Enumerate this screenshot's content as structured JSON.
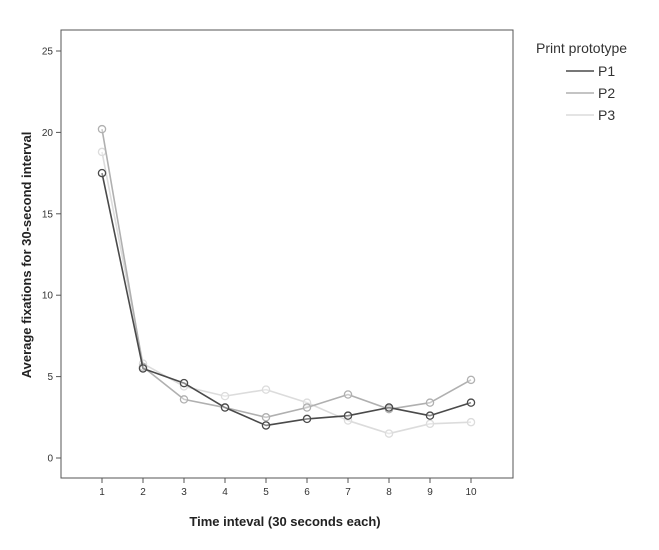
{
  "chart_data": {
    "type": "line",
    "xlabel": "Time inteval (30 seconds each)",
    "ylabel": "Average fixations for 30-second interval",
    "x": [
      1,
      2,
      3,
      4,
      5,
      6,
      7,
      8,
      9,
      10
    ],
    "xticks": [
      "1",
      "2",
      "3",
      "4",
      "5",
      "6",
      "7",
      "8",
      "9",
      "10"
    ],
    "ylim": [
      0,
      25
    ],
    "yticks": [
      "0",
      "5",
      "10",
      "15",
      "20",
      "25"
    ],
    "legend_title": "Print prototype",
    "legend_position": "top-right, outside plot",
    "grid": false,
    "series": [
      {
        "name": "P1",
        "color": "#4a4a4a",
        "values": [
          17.5,
          5.5,
          4.6,
          3.1,
          2.0,
          2.4,
          2.6,
          3.1,
          2.6,
          3.4
        ]
      },
      {
        "name": "P2",
        "color": "#b0b0b0",
        "values": [
          20.2,
          5.6,
          3.6,
          3.1,
          2.5,
          3.1,
          3.9,
          3.0,
          3.4,
          4.8
        ]
      },
      {
        "name": "P3",
        "color": "#dcdcdc",
        "values": [
          18.8,
          5.8,
          4.4,
          3.8,
          4.2,
          3.4,
          2.3,
          1.5,
          2.1,
          2.2
        ]
      }
    ]
  }
}
